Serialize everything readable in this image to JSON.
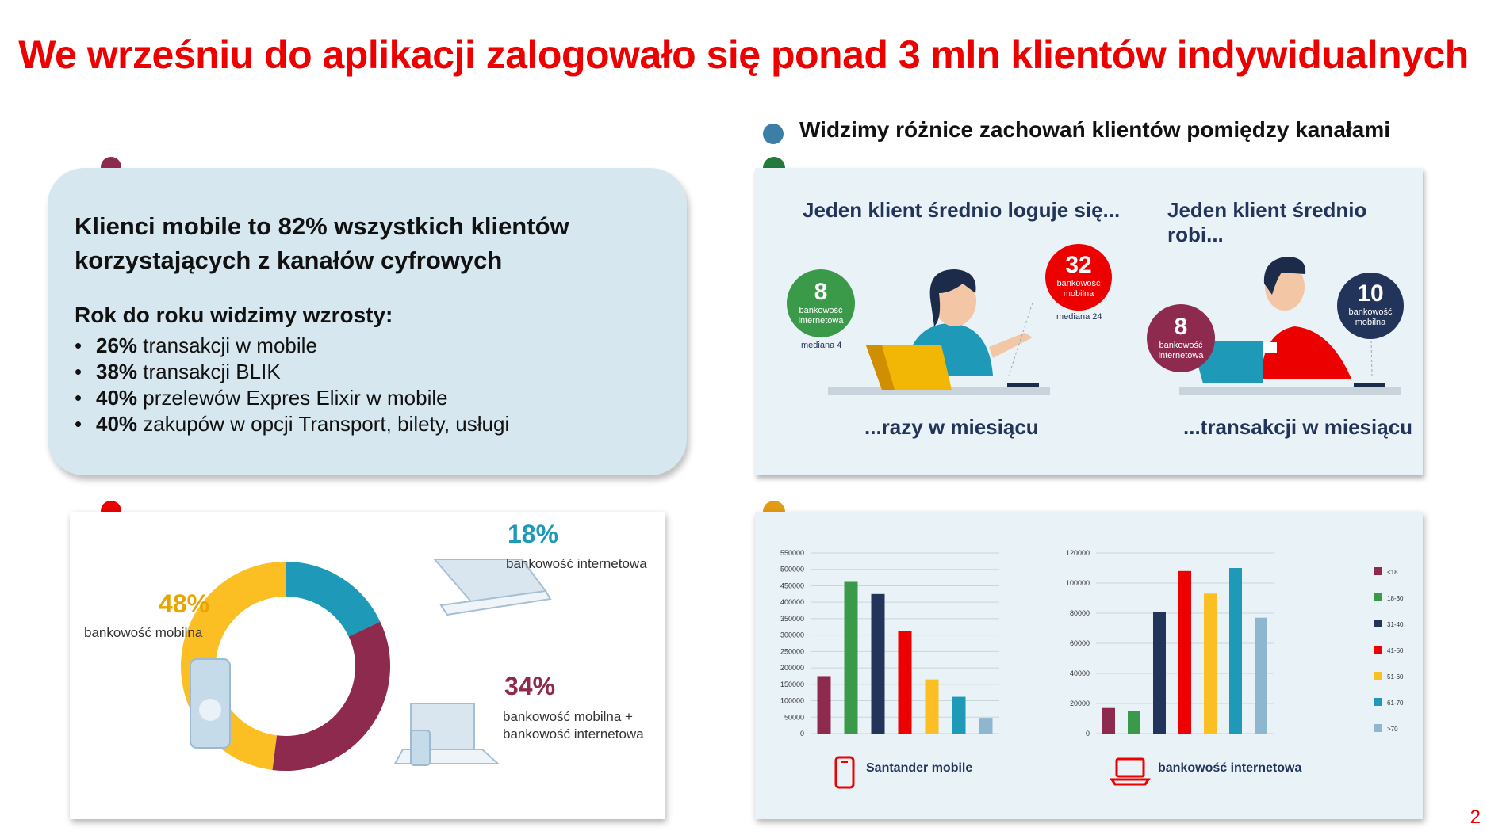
{
  "title": "We wrześniu do aplikacji zalogowało się ponad 3 mln klientów indywidualnych",
  "summary": {
    "headline": "Klienci mobile to 82% wszystkich klientów korzystających z kanałów cyfrowych",
    "growth_heading": "Rok do roku widzimy wzrosty:",
    "growth_items": [
      {
        "pct": "26%",
        "text": " transakcji w mobile"
      },
      {
        "pct": "38%",
        "text": " transakcji BLIK"
      },
      {
        "pct": "40%",
        "text": " przelewów Expres Elixir w mobile"
      },
      {
        "pct": "40%",
        "text": " zakupów w opcji Transport, bilety, usługi"
      }
    ]
  },
  "channels": {
    "heading": "Widzimy różnice zachowań klientów pomiędzy kanałami",
    "logins": {
      "heading": "Jeden klient średnio loguje się...",
      "footer": "...razy w miesiącu",
      "internet": {
        "value": "8",
        "label": "bankowość internetowa",
        "median": "mediana 4"
      },
      "mobile": {
        "value": "32",
        "label": "bankowość mobilna",
        "median": "mediana 24"
      }
    },
    "transactions": {
      "heading": "Jeden klient średnio robi...",
      "footer": "...transakcji w miesiącu",
      "internet": {
        "value": "8",
        "label": "bankowość internetowa"
      },
      "mobile": {
        "value": "10",
        "label": "bankowość mobilna"
      }
    }
  },
  "colors": {
    "brand_red": "#ec0000",
    "mobile_yellow": "#fbbf24",
    "internet_teal": "#1e9ab8",
    "both_maroon": "#8f2a4f",
    "navy": "#22345a",
    "green": "#3a9a4a"
  },
  "chart_data": [
    {
      "type": "pie",
      "categories": [
        "bankowość mobilna",
        "bankowość internetowa",
        "bankowość mobilna + bankowość internetowa"
      ],
      "values": [
        48,
        18,
        34
      ],
      "labels": [
        "48%",
        "18%",
        "34%"
      ],
      "colors": [
        "#fbbf24",
        "#1e9ab8",
        "#8f2a4f"
      ]
    },
    {
      "type": "bar",
      "caption": "Santander mobile",
      "categories": [
        "<18",
        "18-30",
        "31-40",
        "41-50",
        "51-60",
        "61-70",
        ">70"
      ],
      "values": [
        175000,
        462000,
        425000,
        312000,
        165000,
        112000,
        48000
      ],
      "ylim": [
        0,
        550000
      ],
      "yticks": [
        "0",
        "50000",
        "100000",
        "150000",
        "200000",
        "250000",
        "300000",
        "350000",
        "400000",
        "450000",
        "500000",
        "550000"
      ],
      "colors": [
        "#8f2a4f",
        "#3a9a4a",
        "#22345a",
        "#ec0000",
        "#fbbf24",
        "#1e9ab8",
        "#8fb6cf"
      ]
    },
    {
      "type": "bar",
      "caption": "bankowość internetowa",
      "categories": [
        "<18",
        "18-30",
        "31-40",
        "41-50",
        "51-60",
        "61-70",
        ">70"
      ],
      "values": [
        17000,
        15000,
        81000,
        108000,
        93000,
        110000,
        77000
      ],
      "ylim": [
        0,
        120000
      ],
      "yticks": [
        "0",
        "20000",
        "40000",
        "60000",
        "80000",
        "100000",
        "120000"
      ],
      "colors": [
        "#8f2a4f",
        "#3a9a4a",
        "#22345a",
        "#ec0000",
        "#fbbf24",
        "#1e9ab8",
        "#8fb6cf"
      ]
    }
  ],
  "legend": [
    "<18",
    "18-30",
    "31-40",
    "41-50",
    "51-60",
    "61-70",
    ">70"
  ],
  "page_number": "2"
}
